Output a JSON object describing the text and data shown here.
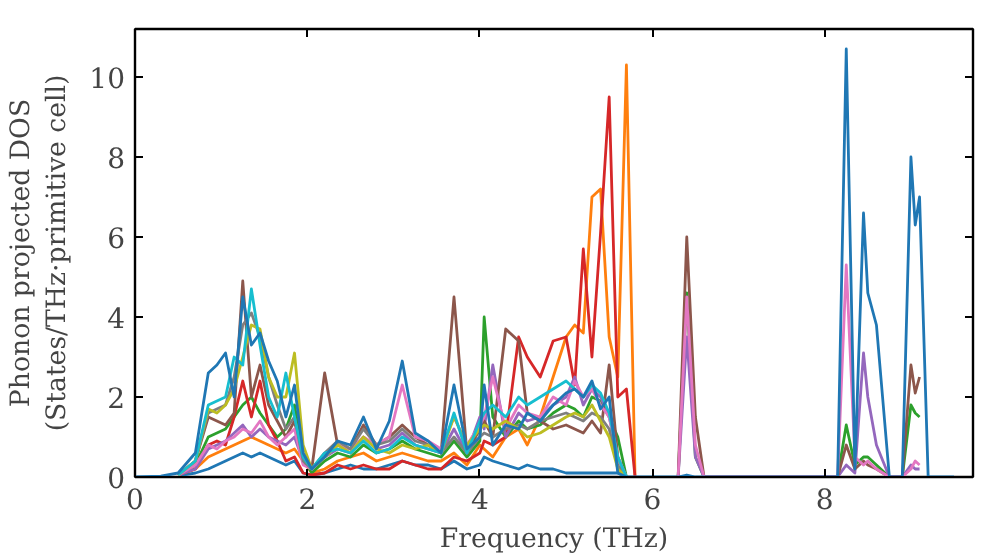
{
  "chart_data": {
    "type": "line",
    "xlabel": "Frequency (THz)",
    "ylabel": "Phonon projected DOS\n(States/THz·primitive cell)",
    "x": [
      0,
      0.3,
      0.5,
      0.7,
      0.85,
      0.95,
      1.05,
      1.15,
      1.25,
      1.35,
      1.45,
      1.55,
      1.65,
      1.75,
      1.85,
      1.95,
      2.05,
      2.2,
      2.35,
      2.5,
      2.65,
      2.8,
      2.95,
      3.1,
      3.25,
      3.4,
      3.55,
      3.7,
      3.85,
      4.0,
      4.05,
      4.15,
      4.3,
      4.45,
      4.55,
      4.7,
      4.85,
      5.0,
      5.1,
      5.2,
      5.3,
      5.4,
      5.5,
      5.6,
      5.7,
      5.8,
      5.9,
      6.2,
      6.3,
      6.4,
      6.5,
      6.6,
      8.15,
      8.25,
      8.35,
      8.45,
      8.5,
      8.6,
      8.75,
      8.9,
      9.0,
      9.05,
      9.1,
      9.2,
      9.3,
      9.5
    ],
    "xlim": [
      0,
      9.72
    ],
    "ylim": [
      0,
      11.2
    ],
    "xticks": [
      0,
      2,
      4,
      6,
      8
    ],
    "yticks": [
      0,
      2,
      4,
      6,
      8,
      10
    ],
    "grid": false,
    "line_style": "solid",
    "series": [
      {
        "color": "#1f77b4",
        "values": [
          null,
          null,
          0.03,
          0.1,
          0.2,
          0.3,
          0.4,
          0.5,
          0.6,
          0.5,
          0.6,
          0.5,
          0.4,
          0.3,
          0.4,
          0.1,
          0.05,
          0.1,
          0.2,
          0.3,
          0.2,
          0.2,
          0.3,
          0.4,
          0.3,
          0.3,
          0.2,
          0.4,
          0.2,
          0.3,
          0.5,
          0.4,
          0.3,
          0.2,
          0.3,
          0.2,
          0.2,
          0.1,
          0.1,
          0.1,
          0.1,
          0.1,
          0.1,
          0.1,
          0,
          null,
          null,
          null,
          null,
          null,
          null,
          null,
          null,
          null,
          null,
          null,
          null,
          null,
          null,
          null,
          null,
          null,
          null,
          null,
          null,
          null
        ]
      },
      {
        "color": "#ff7f0e",
        "values": [
          null,
          null,
          0.05,
          0.2,
          0.5,
          0.6,
          0.7,
          0.8,
          0.9,
          1.0,
          0.9,
          0.8,
          0.7,
          0.6,
          0.7,
          0.4,
          0.1,
          0.2,
          0.4,
          0.5,
          0.6,
          0.4,
          0.5,
          0.6,
          0.5,
          0.4,
          0.4,
          0.6,
          0.3,
          0.8,
          0.7,
          0.5,
          1.0,
          1.2,
          0.8,
          1.5,
          2.5,
          3.5,
          3.8,
          3.6,
          7.0,
          7.2,
          3.5,
          2.5,
          10.3,
          0,
          null,
          null,
          null,
          null,
          null,
          null,
          null,
          null,
          null,
          null,
          null,
          null,
          null,
          null,
          null,
          null,
          null,
          null,
          null,
          null
        ]
      },
      {
        "color": "#2ca02c",
        "values": [
          null,
          null,
          0.05,
          0.3,
          1.0,
          1.1,
          1.2,
          1.5,
          1.8,
          2.0,
          1.6,
          1.3,
          1.0,
          1.2,
          1.8,
          0.5,
          0.1,
          0.4,
          0.6,
          0.5,
          0.8,
          0.6,
          0.7,
          0.9,
          0.7,
          0.6,
          0.5,
          0.9,
          0.5,
          0.9,
          4.0,
          1.5,
          1.0,
          1.4,
          1.2,
          1.3,
          1.6,
          1.8,
          1.7,
          1.5,
          2.0,
          1.9,
          1.5,
          1.0,
          0,
          null,
          null,
          null,
          0,
          4.6,
          0.5,
          0,
          0,
          1.3,
          0.3,
          0.5,
          0.5,
          0.3,
          0,
          0,
          1.8,
          1.6,
          1.5,
          null,
          null,
          null
        ]
      },
      {
        "color": "#d62728",
        "values": [
          null,
          null,
          0.05,
          0.2,
          0.8,
          0.9,
          0.8,
          1.5,
          2.4,
          1.5,
          2.4,
          1.3,
          0.9,
          0.4,
          0.5,
          0.1,
          0.05,
          0.1,
          0.3,
          0.2,
          0.3,
          0.2,
          0.2,
          0.4,
          0.3,
          0.2,
          0.2,
          0.5,
          0.4,
          0.6,
          0.9,
          0.8,
          1.0,
          3.5,
          3.0,
          2.5,
          3.4,
          3.5,
          2.3,
          5.7,
          3.0,
          6.1,
          9.5,
          2.0,
          2.2,
          0,
          null,
          null,
          null,
          null,
          null,
          null,
          null,
          null,
          null,
          null,
          null,
          null,
          null,
          null,
          null,
          null,
          null,
          null,
          null,
          null
        ]
      },
      {
        "color": "#9467bd",
        "values": [
          null,
          null,
          0.05,
          0.2,
          0.7,
          0.8,
          0.9,
          1.1,
          1.3,
          1.0,
          1.2,
          1.0,
          0.9,
          0.8,
          1.0,
          0.4,
          0.2,
          0.5,
          0.7,
          0.6,
          1.0,
          0.7,
          0.8,
          1.1,
          0.8,
          0.7,
          0.6,
          1.2,
          0.6,
          1.5,
          1.2,
          2.8,
          1.0,
          1.6,
          1.4,
          1.5,
          1.8,
          2.0,
          2.5,
          1.8,
          2.2,
          2.0,
          1.5,
          0.5,
          0,
          null,
          null,
          null,
          0,
          3.5,
          0.5,
          0,
          0,
          0.3,
          0.1,
          3.1,
          2.0,
          0.8,
          0,
          0,
          0.3,
          0.2,
          0.2,
          null,
          null,
          null
        ]
      },
      {
        "color": "#8c564b",
        "values": [
          null,
          null,
          0.05,
          0.4,
          1.5,
          1.4,
          1.3,
          1.6,
          4.9,
          2.0,
          2.8,
          1.8,
          1.4,
          1.0,
          1.4,
          0.4,
          0.2,
          2.6,
          0.8,
          0.7,
          1.3,
          0.8,
          1.0,
          1.3,
          1.0,
          0.8,
          0.6,
          4.5,
          0.6,
          1.2,
          1.4,
          1.0,
          3.7,
          3.4,
          1.6,
          1.4,
          1.2,
          1.3,
          1.2,
          1.1,
          1.4,
          1.1,
          2.8,
          0.5,
          0,
          null,
          null,
          null,
          0,
          6.0,
          1.5,
          0,
          0,
          0.8,
          0.2,
          0.4,
          0.3,
          0.2,
          0,
          0,
          2.8,
          2.1,
          2.5,
          null,
          null,
          null
        ]
      },
      {
        "color": "#e377c2",
        "values": [
          null,
          null,
          0.05,
          0.3,
          0.8,
          0.7,
          0.9,
          1.0,
          1.2,
          1.1,
          1.4,
          1.0,
          0.8,
          1.0,
          1.2,
          0.3,
          0.2,
          0.5,
          0.8,
          0.7,
          1.0,
          0.8,
          1.0,
          2.3,
          1.0,
          0.9,
          0.7,
          1.5,
          0.8,
          1.3,
          1.5,
          2.5,
          1.2,
          1.8,
          1.6,
          1.5,
          2.0,
          1.8,
          2.4,
          2.0,
          2.2,
          1.8,
          1.5,
          0.5,
          0,
          null,
          null,
          null,
          0,
          4.5,
          0.8,
          0,
          0,
          5.3,
          0.5,
          0.3,
          0.4,
          0.2,
          0,
          0,
          0.2,
          0.4,
          0.3,
          null,
          null,
          null
        ]
      },
      {
        "color": "#7f7f7f",
        "values": [
          null,
          null,
          0.05,
          0.4,
          1.6,
          1.7,
          1.8,
          2.5,
          3.8,
          4.1,
          3.5,
          2.5,
          1.8,
          1.2,
          1.5,
          0.4,
          0.2,
          0.6,
          0.9,
          0.7,
          1.2,
          0.8,
          0.9,
          1.2,
          0.9,
          0.8,
          0.6,
          1.0,
          0.6,
          1.0,
          1.1,
          1.0,
          1.2,
          1.3,
          1.2,
          1.4,
          1.5,
          1.6,
          1.5,
          1.4,
          1.6,
          1.5,
          1.2,
          0.3,
          0,
          null,
          null,
          null,
          null,
          null,
          null,
          null,
          null,
          null,
          null,
          null,
          null,
          null,
          null,
          null,
          null,
          null,
          null,
          null,
          null,
          null
        ]
      },
      {
        "color": "#bcbd22",
        "values": [
          null,
          null,
          0.05,
          0.4,
          1.7,
          1.6,
          1.8,
          2.2,
          3.0,
          3.8,
          3.7,
          2.5,
          2.0,
          2.0,
          3.1,
          0.8,
          0.2,
          0.5,
          0.8,
          0.6,
          1.0,
          0.7,
          0.6,
          0.8,
          0.7,
          0.8,
          0.6,
          1.5,
          0.8,
          1.2,
          1.3,
          1.2,
          1.4,
          1.2,
          1.0,
          1.1,
          1.3,
          1.5,
          1.6,
          1.5,
          1.8,
          1.4,
          1.0,
          0.2,
          0,
          null,
          null,
          null,
          null,
          null,
          null,
          null,
          null,
          null,
          null,
          null,
          null,
          null,
          null,
          null,
          null,
          null,
          null,
          null,
          null,
          null
        ]
      },
      {
        "color": "#17becf",
        "values": [
          null,
          null,
          0.05,
          0.4,
          1.8,
          1.9,
          2.0,
          3.0,
          2.8,
          4.7,
          3.3,
          2.0,
          1.5,
          2.6,
          1.5,
          0.5,
          0.2,
          0.6,
          0.7,
          0.6,
          0.9,
          0.6,
          0.7,
          1.0,
          0.8,
          0.7,
          0.6,
          1.6,
          0.6,
          1.4,
          1.6,
          1.8,
          1.5,
          2.0,
          1.8,
          2.0,
          2.2,
          2.4,
          2.2,
          2.0,
          2.3,
          2.1,
          1.6,
          0.5,
          0,
          null,
          null,
          null,
          null,
          null,
          null,
          null,
          null,
          null,
          null,
          null,
          null,
          null,
          null,
          null,
          null,
          null,
          null,
          null,
          null,
          null
        ]
      },
      {
        "color": "#1f77b4",
        "values": [
          0,
          0.02,
          0.1,
          0.6,
          2.6,
          2.8,
          3.1,
          2.0,
          4.5,
          3.3,
          3.6,
          2.9,
          2.4,
          1.5,
          2.3,
          0.6,
          0.2,
          0.5,
          0.9,
          0.8,
          1.5,
          0.7,
          1.4,
          2.9,
          1.1,
          0.9,
          0.6,
          2.3,
          0.7,
          1.0,
          2.3,
          0.8,
          1.3,
          1.2,
          1.6,
          1.4,
          1.8,
          2.1,
          2.2,
          2.0,
          2.4,
          1.7,
          2.0,
          0.1,
          0,
          0,
          0,
          0,
          0,
          0.05,
          0,
          0,
          0,
          10.7,
          0.2,
          6.6,
          4.6,
          3.8,
          0,
          0,
          8.0,
          6.3,
          7.0,
          0,
          0,
          0
        ]
      }
    ]
  }
}
